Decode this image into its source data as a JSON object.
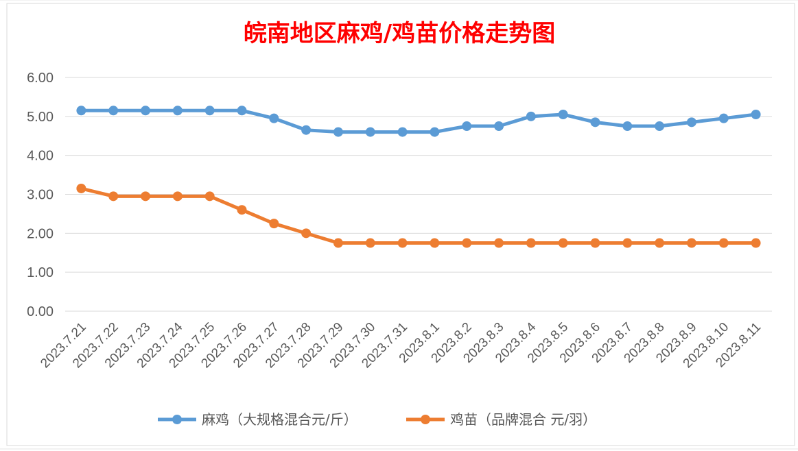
{
  "chart_data": {
    "type": "line",
    "title": "皖南地区麻鸡/鸡苗价格走势图",
    "title_color": "#ff0000",
    "categories": [
      "2023.7.21",
      "2023.7.22",
      "2023.7.23",
      "2023.7.24",
      "2023.7.25",
      "2023.7.26",
      "2023.7.27",
      "2023.7.28",
      "2023.7.29",
      "2023.7.30",
      "2023.7.31",
      "2023.8.1",
      "2023.8.2",
      "2023.8.3",
      "2023.8.4",
      "2023.8.5",
      "2023.8.6",
      "2023.8.7",
      "2023.8.8",
      "2023.8.9",
      "2023.8.10",
      "2023.8.11"
    ],
    "y_ticks": [
      "0.00",
      "1.00",
      "2.00",
      "3.00",
      "4.00",
      "5.00",
      "6.00"
    ],
    "ylim": [
      0,
      6
    ],
    "grid": true,
    "legend_position": "bottom",
    "series": [
      {
        "name": "麻鸡（大规格混合元/斤）",
        "color": "#5b9bd5",
        "values": [
          5.15,
          5.15,
          5.15,
          5.15,
          5.15,
          5.15,
          4.95,
          4.65,
          4.6,
          4.6,
          4.6,
          4.6,
          4.75,
          4.75,
          5.0,
          5.05,
          4.85,
          4.75,
          4.75,
          4.85,
          4.95,
          5.05
        ]
      },
      {
        "name": "鸡苗（品牌混合 元/羽）",
        "color": "#ed7d31",
        "values": [
          3.15,
          2.95,
          2.95,
          2.95,
          2.95,
          2.6,
          2.25,
          2.0,
          1.75,
          1.75,
          1.75,
          1.75,
          1.75,
          1.75,
          1.75,
          1.75,
          1.75,
          1.75,
          1.75,
          1.75,
          1.75,
          1.75
        ]
      }
    ]
  }
}
